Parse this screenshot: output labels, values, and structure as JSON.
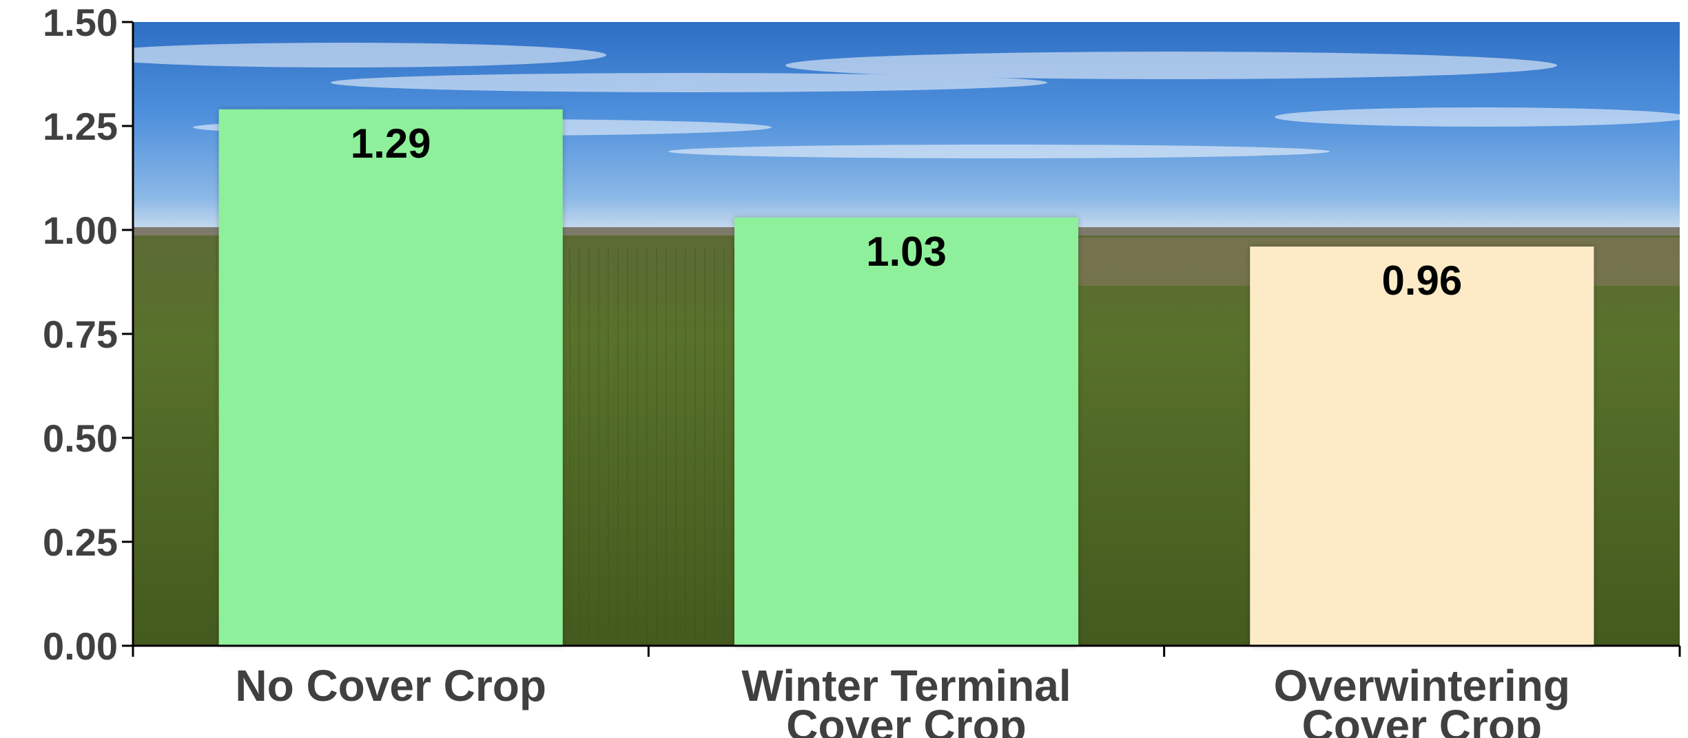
{
  "chart_data": {
    "type": "bar",
    "categories": [
      [
        "No Cover Crop"
      ],
      [
        "Winter Terminal",
        "Cover Crop"
      ],
      [
        "Overwintering",
        "Cover Crop"
      ]
    ],
    "values": [
      1.29,
      1.03,
      0.96
    ],
    "value_labels": [
      "1.29",
      "1.03",
      "0.96"
    ],
    "bar_colors": [
      "#8ef09a",
      "#8ef09a",
      "#fdebc7"
    ],
    "ylim": [
      0,
      1.5
    ],
    "yticks": [
      "0.00",
      "0.25",
      "0.50",
      "0.75",
      "1.00",
      "1.25",
      "1.50"
    ],
    "title": "",
    "xlabel": "",
    "ylabel": "",
    "grid": false,
    "legend": "none",
    "background": "farm-field-photo"
  }
}
